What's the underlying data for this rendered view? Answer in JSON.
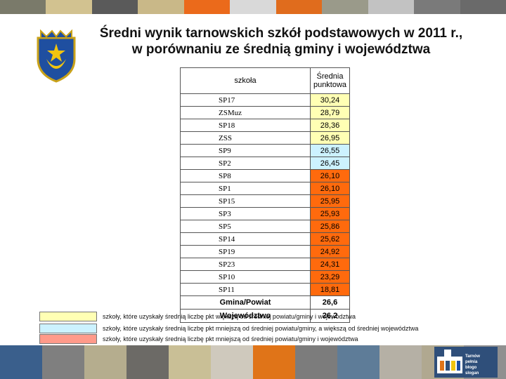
{
  "title_line1": "Średni wynik tarnowskich szkół podstawowych w 2011 r.,",
  "title_line2": "w porównaniu ze średnią gminy i województwa",
  "colors": {
    "above": "#ffffb4",
    "between": "#ccf2ff",
    "below": "#ff6a0d",
    "legend_below": "#ff9a8a",
    "topbar": [
      "#7a7a6a",
      "#d2c290",
      "#5a5a5a",
      "#c9b888",
      "#eb6a1b",
      "#d9d9d9",
      "#e06c1d",
      "#9a9a8a",
      "#c2c2c2",
      "#7a7a7a",
      "#6a6a6a"
    ],
    "botbar": [
      "#3a5f8c",
      "#7f7f7f",
      "#b5ad8e",
      "#6c6a66",
      "#c9bf96",
      "#cfc9bd",
      "#e07418",
      "#7c7c7c",
      "#5e7c98",
      "#b5b0a5",
      "#b0a890",
      "#909090"
    ]
  },
  "table": {
    "col_school": "szkoła",
    "col_score": "Średnia punktowa",
    "rows": [
      {
        "school": "SP17",
        "score": "30,24",
        "cat": "above"
      },
      {
        "school": "ZSMuz",
        "score": "28,79",
        "cat": "above"
      },
      {
        "school": "SP18",
        "score": "28,36",
        "cat": "above"
      },
      {
        "school": "ZSS",
        "score": "26,95",
        "cat": "above"
      },
      {
        "school": "SP9",
        "score": "26,55",
        "cat": "between"
      },
      {
        "school": "SP2",
        "score": "26,45",
        "cat": "between"
      },
      {
        "school": "SP8",
        "score": "26,10",
        "cat": "below"
      },
      {
        "school": "SP1",
        "score": "26,10",
        "cat": "below"
      },
      {
        "school": "SP15",
        "score": "25,95",
        "cat": "below"
      },
      {
        "school": "SP3",
        "score": "25,93",
        "cat": "below"
      },
      {
        "school": "SP5",
        "score": "25,86",
        "cat": "below"
      },
      {
        "school": "SP14",
        "score": "25,62",
        "cat": "below"
      },
      {
        "school": "SP19",
        "score": "24,92",
        "cat": "below"
      },
      {
        "school": "SP23",
        "score": "24,31",
        "cat": "below"
      },
      {
        "school": "SP10",
        "score": "23,29",
        "cat": "below"
      },
      {
        "school": "SP11",
        "score": "18,81",
        "cat": "below"
      }
    ],
    "summary": [
      {
        "label": "Gmina/Powiat",
        "score": "26,6"
      },
      {
        "label": "Województwo",
        "score": "26,2"
      }
    ]
  },
  "legend": [
    {
      "text": "szkoły, które uzyskały średnią liczbę pkt większą od średniej powiatu/gminy i województwa",
      "cat": "above"
    },
    {
      "text": "szkoły, które uzyskały średnią liczbę pkt mniejszą od średniej powiatu/gminy, a większą od średniej województwa",
      "cat": "between"
    },
    {
      "text": "szkoły, które uzyskały średnią liczbę pkt mniejszą od średniej powiatu/gminy i województwa",
      "cat": "legend_below"
    }
  ],
  "logo_text": [
    "Tarnów",
    "pełnia",
    "błogo",
    "slogan"
  ]
}
